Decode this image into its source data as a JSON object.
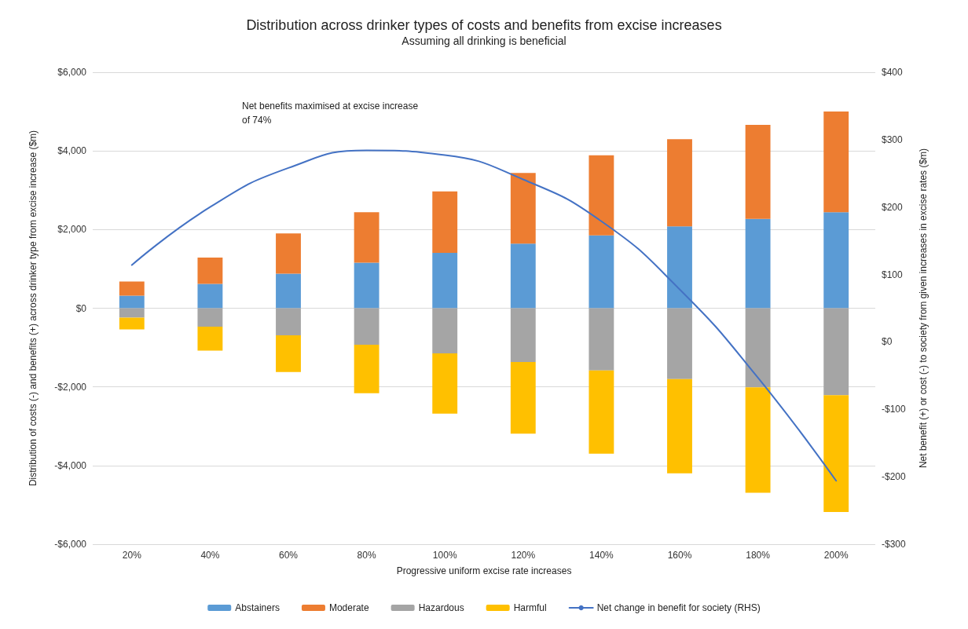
{
  "chart_data": {
    "type": "bar",
    "stacked": true,
    "title": "Distribution across drinker types of costs and benefits from excise increases",
    "subtitle": "Assuming all drinking is beneficial",
    "xlabel": "Progressive uniform excise rate increases",
    "ylabel": "Distribution of costs (-) and benefits (+) across drinker type from excise increase ($m)",
    "y2label": "Net benefit (+) or cost (-) to society from given increases in excise rates ($m)",
    "annotations": [
      "Net benefits maximised at excise increase of 74%"
    ],
    "categories": [
      "20%",
      "40%",
      "60%",
      "80%",
      "100%",
      "120%",
      "140%",
      "160%",
      "180%",
      "200%"
    ],
    "series": [
      {
        "name": "Abstainers",
        "color": "#5b9bd5",
        "values": [
          320,
          620,
          880,
          1160,
          1410,
          1640,
          1850,
          2080,
          2270,
          2440
        ]
      },
      {
        "name": "Moderate",
        "color": "#ed7d31",
        "values": [
          360,
          670,
          1020,
          1280,
          1560,
          1800,
          2040,
          2220,
          2390,
          2560
        ]
      },
      {
        "name": "Hazardous",
        "color": "#a5a5a5",
        "values": [
          -240,
          -470,
          -690,
          -930,
          -1150,
          -1370,
          -1580,
          -1800,
          -2010,
          -2210
        ]
      },
      {
        "name": "Harmful",
        "color": "#ffc000",
        "values": [
          -300,
          -610,
          -930,
          -1230,
          -1530,
          -1820,
          -2120,
          -2400,
          -2680,
          -2970
        ]
      },
      {
        "name": "Net change in benefit for society (RHS)",
        "type": "line",
        "axis": "y2",
        "color": "#4472c4",
        "values": [
          114,
          200,
          258,
          284,
          277,
          241,
          179,
          78,
          -53,
          -206
        ]
      }
    ],
    "ylim": [
      -6000,
      6000
    ],
    "yticks": [
      {
        "value": -6000,
        "label": "-$6,000"
      },
      {
        "value": -4000,
        "label": "-$4,000"
      },
      {
        "value": -2000,
        "label": "-$2,000"
      },
      {
        "value": 0,
        "label": "$0"
      },
      {
        "value": 2000,
        "label": "$2,000"
      },
      {
        "value": 4000,
        "label": "$4,000"
      },
      {
        "value": 6000,
        "label": "$6,000"
      }
    ],
    "y2lim": [
      -300,
      400
    ],
    "y2ticks": [
      {
        "value": -300,
        "label": "-$300"
      },
      {
        "value": -200,
        "label": "-$200"
      },
      {
        "value": -100,
        "label": "-$100"
      },
      {
        "value": 0,
        "label": "$0"
      },
      {
        "value": 100,
        "label": "$100"
      },
      {
        "value": 200,
        "label": "$200"
      },
      {
        "value": 300,
        "label": "$300"
      },
      {
        "value": 400,
        "label": "$400"
      }
    ],
    "grid": "y",
    "legend": "bottom",
    "marker": "none",
    "line_style": "solid"
  }
}
